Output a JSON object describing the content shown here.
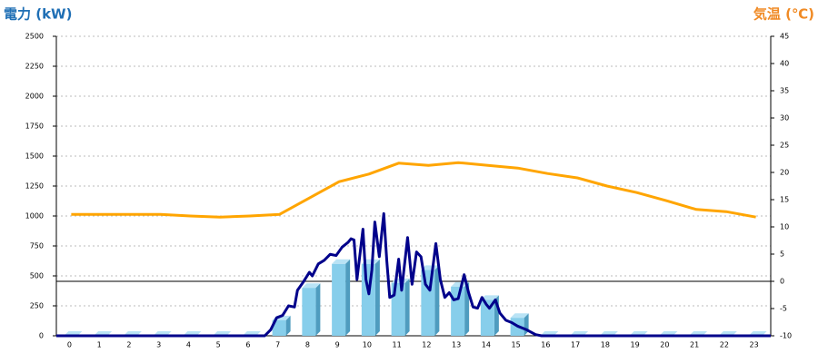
{
  "chart_data": {
    "type": "combo",
    "left_title": "電力 (kW)",
    "right_title": "気温 (℃)",
    "categories": [
      "0",
      "1",
      "2",
      "3",
      "4",
      "5",
      "6",
      "7",
      "8",
      "9",
      "10",
      "11",
      "12",
      "13",
      "14",
      "15",
      "16",
      "17",
      "18",
      "19",
      "20",
      "21",
      "22",
      "23"
    ],
    "ylim": [
      0,
      2500
    ],
    "yticks": [
      0,
      250,
      500,
      750,
      1000,
      1250,
      1500,
      1750,
      2000,
      2250,
      2500
    ],
    "y2lim": [
      -10,
      45
    ],
    "y2ticks": [
      -10,
      -5,
      0,
      5,
      10,
      15,
      20,
      25,
      30,
      35,
      40,
      45
    ],
    "grid": true,
    "series": [
      {
        "type": "bar",
        "color": "#87ceeb",
        "values": [
          0,
          0,
          0,
          0,
          0,
          0,
          0,
          130,
          400,
          600,
          600,
          440,
          550,
          410,
          300,
          150,
          0,
          0,
          0,
          0,
          0,
          0,
          0,
          0
        ]
      },
      {
        "type": "line",
        "color": "#00008b",
        "x": [
          -0.5,
          6.5,
          6.7,
          6.9,
          7.1,
          7.3,
          7.5,
          7.6,
          7.8,
          8.0,
          8.1,
          8.3,
          8.5,
          8.7,
          8.9,
          9.1,
          9.3,
          9.4,
          9.5,
          9.6,
          9.8,
          9.9,
          10.0,
          10.1,
          10.2,
          10.35,
          10.5,
          10.6,
          10.7,
          10.85,
          11.0,
          11.1,
          11.3,
          11.45,
          11.6,
          11.75,
          11.9,
          12.05,
          12.25,
          12.4,
          12.55,
          12.7,
          12.85,
          13.0,
          13.2,
          13.35,
          13.5,
          13.65,
          13.8,
          13.95,
          14.05,
          14.25,
          14.4,
          14.6,
          14.8,
          15.0,
          15.3,
          15.6,
          15.8,
          23.5
        ],
        "values": [
          0,
          0,
          50,
          150,
          170,
          250,
          240,
          380,
          450,
          530,
          500,
          600,
          630,
          680,
          670,
          740,
          780,
          810,
          800,
          470,
          890,
          470,
          350,
          550,
          950,
          660,
          1020,
          630,
          320,
          340,
          640,
          380,
          820,
          430,
          700,
          660,
          430,
          380,
          770,
          470,
          320,
          360,
          300,
          310,
          510,
          360,
          240,
          230,
          320,
          260,
          230,
          300,
          190,
          130,
          110,
          80,
          50,
          10,
          0,
          0
        ]
      },
      {
        "type": "line",
        "axis": "y2",
        "color": "#ffa500",
        "values": [
          12.3,
          12.3,
          12.3,
          12.3,
          12,
          11.8,
          12,
          12.3,
          15.3,
          18.3,
          19.7,
          21.7,
          21.3,
          21.8,
          21.3,
          20.8,
          19.8,
          19,
          17.5,
          16.3,
          14.8,
          13.2,
          12.8,
          11.8
        ]
      }
    ]
  }
}
